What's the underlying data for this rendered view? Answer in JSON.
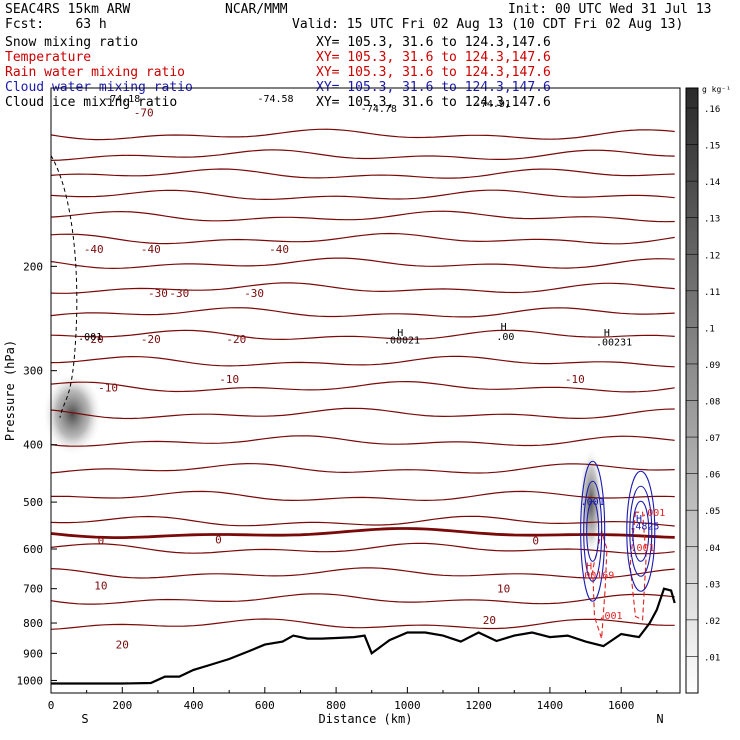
{
  "header": {
    "model": "SEAC4RS 15km ARW",
    "center": "NCAR/MMM",
    "init": "Init: 00 UTC Wed 31 Jul 13",
    "fcst": "Fcst:    63 h",
    "valid": "Valid: 15 UTC Fri 02 Aug 13 (10 CDT Fri 02 Aug 13)"
  },
  "fields": [
    {
      "name": "Snow mixing ratio",
      "xy": "XY= 105.3, 31.6 to 124.3,147.6",
      "color": "#000000"
    },
    {
      "name": "Temperature",
      "xy": "XY= 105.3, 31.6 to 124.3,147.6",
      "color": "#cc0000"
    },
    {
      "name": "Rain water mixing ratio",
      "xy": "XY= 105.3, 31.6 to 124.3,147.6",
      "color": "#cc0000"
    },
    {
      "name": "Cloud water mixing ratio",
      "xy": "XY= 105.3, 31.6 to 124.3,147.6",
      "color": "#1a1ab0"
    },
    {
      "name": "Cloud ice mixing ratio",
      "xy": "XY= 105.3, 31.6 to 124.3,147.6",
      "color": "#000000"
    }
  ],
  "chart_data": {
    "type": "cross-section",
    "xlabel": "Distance (km)",
    "ylabel": "Pressure (hPa)",
    "xlim": [
      0,
      1765
    ],
    "ylim": [
      1050,
      100
    ],
    "y_axis_scale": "log",
    "x_ticks": [
      0,
      200,
      400,
      600,
      800,
      1000,
      1200,
      1400,
      1600
    ],
    "y_ticks": [
      200,
      300,
      400,
      500,
      600,
      700,
      800,
      900,
      1000
    ],
    "x_end_labels": {
      "left": "S",
      "right": "N"
    },
    "temperature_contour_labels": [
      "-70",
      "-40",
      "-40",
      "-40",
      "-30",
      "-30",
      "-30",
      "-20",
      "-20",
      "-20",
      "-10",
      "-10",
      "-10",
      "0",
      "0",
      "0",
      "10",
      "10",
      "20",
      "20"
    ],
    "annotations": [
      "-74.18",
      "-74.58",
      "-74.78",
      "-74.91",
      ".001",
      "H",
      ".00021",
      "H",
      ".00",
      "H",
      ".00231",
      ".001",
      "H",
      ".4825",
      ".001",
      "H",
      ".00169",
      ".001",
      ".001"
    ],
    "terrain_surface": {
      "x": [
        0,
        100,
        200,
        280,
        320,
        360,
        400,
        450,
        500,
        560,
        600,
        650,
        680,
        720,
        760,
        800,
        850,
        880,
        900,
        950,
        1000,
        1050,
        1100,
        1150,
        1200,
        1250,
        1300,
        1350,
        1400,
        1450,
        1500,
        1550,
        1600,
        1650,
        1680,
        1700,
        1720,
        1740,
        1750
      ],
      "p": [
        1012,
        1012,
        1012,
        1010,
        985,
        985,
        960,
        940,
        920,
        890,
        870,
        860,
        840,
        850,
        850,
        848,
        845,
        840,
        900,
        855,
        830,
        830,
        840,
        860,
        830,
        858,
        840,
        830,
        845,
        840,
        860,
        875,
        835,
        845,
        800,
        760,
        700,
        705,
        740
      ]
    },
    "colorbar": {
      "units": "g kg⁻¹",
      "ticks": [
        ".01",
        ".02",
        ".03",
        ".04",
        ".05",
        ".06",
        ".07",
        ".08",
        ".09",
        ".1",
        ".11",
        ".12",
        ".13",
        ".14",
        ".15",
        ".16"
      ]
    },
    "colors": {
      "temperature": "#7a0a0a",
      "rain": "#e02020",
      "cloud_water": "#1a1ab0",
      "terrain": "#000000"
    }
  }
}
